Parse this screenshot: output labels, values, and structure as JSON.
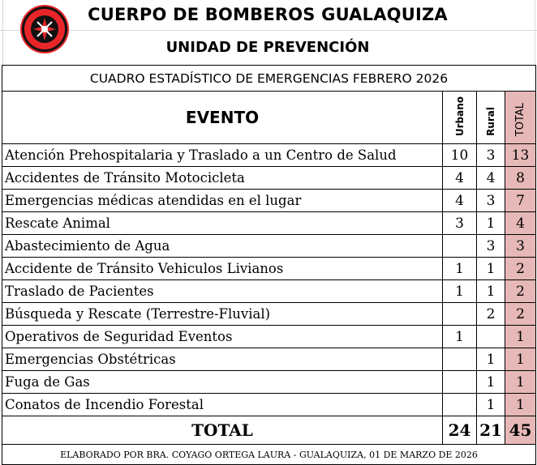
{
  "header": {
    "org": "CUERPO DE BOMBEROS GUALAQUIZA",
    "unit": "UNIDAD DE PREVENCIÓN",
    "logo_text": [
      "BOMBEROS",
      "GUALAQUIZA"
    ]
  },
  "table": {
    "title": "CUADRO ESTADÍSTICO DE EMERGENCIAS FEBRERO 2026",
    "columns": [
      "EVENTO",
      "Urbano",
      "Rural",
      "TOTAL"
    ],
    "rows": [
      {
        "event": "Atención Prehospitalaria y  Traslado a un Centro de Salud",
        "urbano": "10",
        "rural": "3",
        "total": "13"
      },
      {
        "event": "Accidentes de Tránsito Motocicleta",
        "urbano": "4",
        "rural": "4",
        "total": "8"
      },
      {
        "event": "Emergencias médicas atendidas en el lugar",
        "urbano": "4",
        "rural": "3",
        "total": "7"
      },
      {
        "event": "Rescate Animal",
        "urbano": "3",
        "rural": "1",
        "total": "4"
      },
      {
        "event": "Abastecimiento de Agua",
        "urbano": "",
        "rural": "3",
        "total": "3"
      },
      {
        "event": "Accidente de Tránsito Vehiculos Livianos",
        "urbano": "1",
        "rural": "1",
        "total": "2"
      },
      {
        "event": "Traslado de Pacientes",
        "urbano": "1",
        "rural": "1",
        "total": "2"
      },
      {
        "event": "Búsqueda y Rescate (Terrestre-Fluvial)",
        "urbano": "",
        "rural": "2",
        "total": "2"
      },
      {
        "event": "Operativos de Seguridad Eventos",
        "urbano": "1",
        "rural": "",
        "total": "1"
      },
      {
        "event": "Emergencias Obstétricas",
        "urbano": "",
        "rural": "1",
        "total": "1"
      },
      {
        "event": "Fuga de Gas",
        "urbano": "",
        "rural": "1",
        "total": "1"
      },
      {
        "event": "Conatos de Incendio Forestal",
        "urbano": "",
        "rural": "1",
        "total": "1"
      }
    ],
    "total": {
      "label": "TOTAL",
      "urbano": "24",
      "rural": "21",
      "total": "45"
    },
    "footer": "ELABORADO POR BRA. COYAGO ORTEGA LAURA - GUALAQUIZA, 01 DE MARZO DE 2026",
    "total_column_color": "#e6b8b7"
  }
}
